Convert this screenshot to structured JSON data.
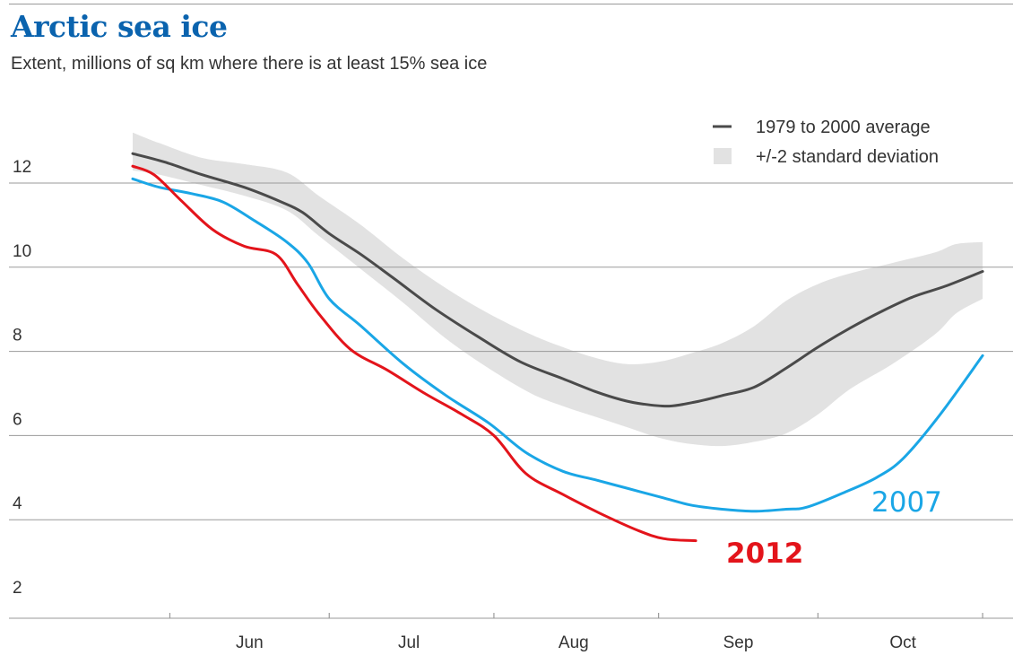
{
  "header": {
    "title": "Arctic sea ice",
    "subtitle": "Extent, millions of sq km where there is at least 15% sea ice"
  },
  "colors": {
    "title": "#0a63ae",
    "average": "#4a4a4a",
    "band": "#e2e2e2",
    "s2012": "#e3141b",
    "s2007": "#1aa6e6",
    "grid": "#9a9a9a",
    "text": "#333333"
  },
  "chart_data": {
    "type": "line",
    "ylim": [
      1.5,
      13.5
    ],
    "yticks": [
      2,
      4,
      6,
      8,
      10,
      12
    ],
    "ytick_labels": [
      "2",
      "4",
      "6",
      "8",
      "10",
      "12"
    ],
    "x_unit": "day of year",
    "xlim": [
      145,
      306
    ],
    "month_boundaries": [
      152,
      182,
      213,
      244,
      274,
      305
    ],
    "month_labels": [
      {
        "label": "Jun",
        "at": 167
      },
      {
        "label": "Jul",
        "at": 197
      },
      {
        "label": "Aug",
        "at": 228
      },
      {
        "label": "Sep",
        "at": 259
      },
      {
        "label": "Oct",
        "at": 290
      }
    ],
    "legend": {
      "position": "top-right",
      "items": [
        {
          "label": "1979 to 2000 average",
          "kind": "line"
        },
        {
          "label": "+/-2 standard deviation",
          "kind": "band"
        }
      ]
    },
    "band": {
      "x": [
        145,
        150,
        158,
        166,
        174,
        180,
        188,
        196,
        204,
        212,
        220,
        226,
        232,
        238,
        244,
        250,
        256,
        262,
        268,
        274,
        280,
        288,
        296,
        300,
        305
      ],
      "upper": [
        13.2,
        12.95,
        12.6,
        12.45,
        12.25,
        11.7,
        11.0,
        10.2,
        9.5,
        8.9,
        8.4,
        8.1,
        7.85,
        7.7,
        7.75,
        7.95,
        8.2,
        8.6,
        9.2,
        9.6,
        9.85,
        10.1,
        10.35,
        10.55,
        10.6
      ],
      "lower": [
        12.3,
        12.2,
        11.95,
        11.7,
        11.35,
        10.75,
        9.95,
        9.15,
        8.3,
        7.6,
        7.0,
        6.7,
        6.45,
        6.2,
        5.95,
        5.8,
        5.75,
        5.85,
        6.05,
        6.5,
        7.1,
        7.7,
        8.4,
        8.9,
        9.25
      ]
    },
    "series": [
      {
        "name": "1979 to 2000 average",
        "x": [
          145,
          151,
          158,
          166,
          173,
          177,
          182,
          188,
          194,
          202,
          210,
          218,
          226,
          232,
          237,
          241,
          246,
          251,
          256,
          262,
          268,
          274,
          280,
          286,
          292,
          298,
          305
        ],
        "values": [
          12.7,
          12.5,
          12.2,
          11.9,
          11.55,
          11.3,
          10.8,
          10.3,
          9.75,
          9.0,
          8.35,
          7.75,
          7.35,
          7.05,
          6.85,
          6.75,
          6.7,
          6.8,
          6.95,
          7.15,
          7.6,
          8.1,
          8.55,
          8.95,
          9.3,
          9.55,
          9.9
        ]
      },
      {
        "name": "2007",
        "x": [
          145,
          150,
          156,
          162,
          168,
          174,
          178,
          182,
          188,
          196,
          204,
          212,
          219,
          226,
          232,
          238,
          244,
          250,
          256,
          262,
          268,
          272,
          279,
          285,
          290,
          297,
          305
        ],
        "values": [
          12.1,
          11.9,
          11.75,
          11.55,
          11.1,
          10.6,
          10.1,
          9.25,
          8.6,
          7.7,
          6.95,
          6.3,
          5.6,
          5.15,
          4.95,
          4.75,
          4.55,
          4.35,
          4.25,
          4.2,
          4.25,
          4.3,
          4.65,
          5.0,
          5.45,
          6.5,
          7.9
        ]
      },
      {
        "name": "2012",
        "x": [
          145,
          149,
          154,
          160,
          166,
          172,
          176,
          180,
          186,
          193,
          200,
          207,
          213,
          219,
          226,
          233,
          240,
          245,
          251
        ],
        "values": [
          12.4,
          12.2,
          11.6,
          10.9,
          10.5,
          10.3,
          9.6,
          8.9,
          8.05,
          7.55,
          7.0,
          6.5,
          6.0,
          5.1,
          4.6,
          4.15,
          3.75,
          3.55,
          3.5
        ]
      }
    ],
    "annotations": [
      {
        "text": "2007",
        "series": "2007"
      },
      {
        "text": "2012",
        "series": "2012"
      }
    ]
  }
}
